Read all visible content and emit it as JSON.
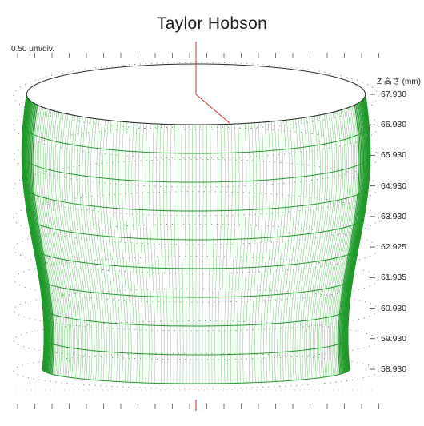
{
  "title": "Taylor Hobson",
  "scale_label": "0.50 μm/div.",
  "axis": {
    "title": "Z 高さ (mm)",
    "ticks": [
      "67.930",
      "66.930",
      "65.930",
      "64.930",
      "63.930",
      "62.925",
      "61.935",
      "60.930",
      "59.930",
      "58.930"
    ]
  },
  "colors": {
    "mesh": "#1f9a2a",
    "mesh_light": "#6cc46f",
    "reference_line": "#d42020",
    "dots": "#555555"
  }
}
